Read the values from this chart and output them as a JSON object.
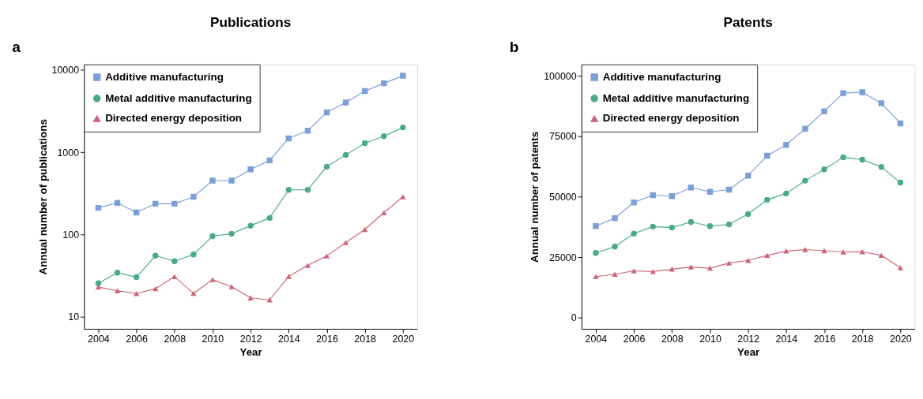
{
  "chart_data": [
    {
      "type": "line",
      "title": "Publications",
      "xlabel": "Year",
      "ylabel": "Annual number of publications",
      "annotations": [
        "a"
      ],
      "log": "y",
      "legend": "top left",
      "grid": false,
      "x": [
        2004,
        2005,
        2006,
        2007,
        2008,
        2009,
        2010,
        2011,
        2012,
        2013,
        2014,
        2015,
        2016,
        2017,
        2018,
        2019,
        2020
      ],
      "xlim": [
        2003.25,
        2020.75
      ],
      "xticks": [
        2004,
        2006,
        2008,
        2010,
        2012,
        2014,
        2016,
        2018,
        2020
      ],
      "ylim": [
        7.2,
        11700
      ],
      "yticks": [
        10,
        100,
        1000,
        10000
      ],
      "series": [
        {
          "name": "Additive manufacturing",
          "color": "#7b9fd6",
          "marker": "square",
          "values": [
            212,
            244,
            186,
            238,
            238,
            289,
            455,
            455,
            622,
            800,
            1479,
            1836,
            3055,
            4036,
            5560,
            6900,
            8520
          ]
        },
        {
          "name": "Metal additive manufacturing",
          "color": "#4aaa88",
          "marker": "circle",
          "values": [
            25.8,
            34.6,
            30.5,
            55.6,
            47.7,
            57.6,
            96,
            103,
            129,
            160,
            351,
            351,
            671,
            933,
            1294,
            1573,
            2009
          ]
        },
        {
          "name": "Directed energy deposition",
          "color": "#cc6677",
          "marker": "triangle",
          "values": [
            23.1,
            20.9,
            19.3,
            22.1,
            31,
            19.4,
            28.5,
            23.4,
            17.1,
            16.2,
            31.2,
            42.4,
            55.2,
            80.5,
            116,
            185,
            289
          ]
        }
      ]
    },
    {
      "type": "line",
      "title": "Patents",
      "xlabel": "Year",
      "ylabel": "Annual number of patents",
      "annotations": [
        "b"
      ],
      "legend": "top left",
      "grid": false,
      "x": [
        2004,
        2005,
        2006,
        2007,
        2008,
        2009,
        2010,
        2011,
        2012,
        2013,
        2014,
        2015,
        2016,
        2017,
        2018,
        2019,
        2020
      ],
      "xlim": [
        2003.25,
        2020.75
      ],
      "xticks": [
        2004,
        2006,
        2008,
        2010,
        2012,
        2014,
        2016,
        2018,
        2020
      ],
      "ylim": [
        -4600,
        104800
      ],
      "yticks": [
        0,
        25000,
        50000,
        75000,
        100000
      ],
      "series": [
        {
          "name": "Additive manufacturing",
          "color": "#7b9fd6",
          "marker": "square",
          "values": [
            37900,
            41200,
            47700,
            50700,
            50300,
            53900,
            52100,
            53000,
            58800,
            67000,
            71500,
            78200,
            85400,
            92900,
            93300,
            88700,
            80400
          ]
        },
        {
          "name": "Metal additive manufacturing",
          "color": "#4aaa88",
          "marker": "circle",
          "values": [
            26800,
            29400,
            34800,
            37700,
            37300,
            39600,
            37900,
            38600,
            42900,
            48800,
            51400,
            56700,
            61400,
            66400,
            65400,
            62400,
            55900
          ]
        },
        {
          "name": "Directed energy deposition",
          "color": "#cc6677",
          "marker": "triangle",
          "values": [
            17000,
            18000,
            19400,
            19100,
            20100,
            21000,
            20500,
            22600,
            23700,
            25800,
            27600,
            28200,
            27700,
            27200,
            27300,
            25800,
            20700
          ]
        }
      ]
    }
  ]
}
